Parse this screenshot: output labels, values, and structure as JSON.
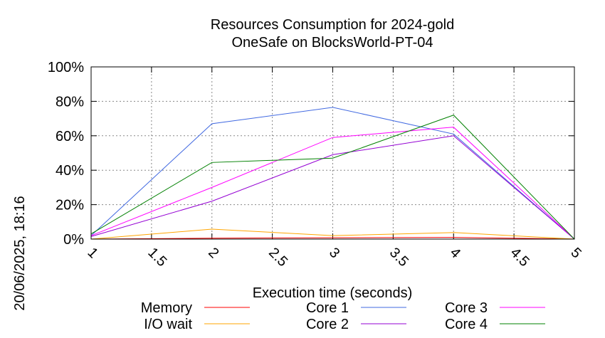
{
  "chart_data": {
    "type": "line",
    "title": "Resources Consumption for 2024-gold",
    "subtitle": "OneSafe on BlocksWorld-PT-04",
    "xlabel": "Execution time (seconds)",
    "ylabel": "",
    "timestamp": "20/06/2025, 18:16",
    "xlim": [
      1,
      5
    ],
    "ylim": [
      0,
      100
    ],
    "x_ticks": [
      1,
      1.5,
      2,
      2.5,
      3,
      3.5,
      4,
      4.5,
      5
    ],
    "x_tick_labels": [
      "1",
      "1.5",
      "2",
      "2.5",
      "3",
      "3.5",
      "4",
      "4.5",
      "5"
    ],
    "y_ticks": [
      0,
      20,
      40,
      60,
      80,
      100
    ],
    "y_tick_labels": [
      "0%",
      "20%",
      "40%",
      "60%",
      "80%",
      "100%"
    ],
    "grid": true,
    "legend_position": "bottom",
    "x": [
      1,
      2,
      3,
      4,
      5
    ],
    "series": [
      {
        "name": "Memory",
        "color": "#ff0000",
        "values": [
          0,
          0.5,
          0.8,
          1,
          0
        ]
      },
      {
        "name": "I/O wait",
        "color": "#ffa500",
        "values": [
          0,
          5.8,
          2,
          3.8,
          0
        ]
      },
      {
        "name": "Core 1",
        "color": "#4169e1",
        "values": [
          2,
          67,
          76.5,
          61,
          0
        ]
      },
      {
        "name": "Core 2",
        "color": "#9400d3",
        "values": [
          1.5,
          22,
          49,
          60,
          0
        ]
      },
      {
        "name": "Core 3",
        "color": "#ff00ff",
        "values": [
          2,
          30,
          59,
          65,
          0
        ]
      },
      {
        "name": "Core 4",
        "color": "#008000",
        "values": [
          3,
          44.5,
          47,
          72,
          0
        ]
      }
    ]
  }
}
